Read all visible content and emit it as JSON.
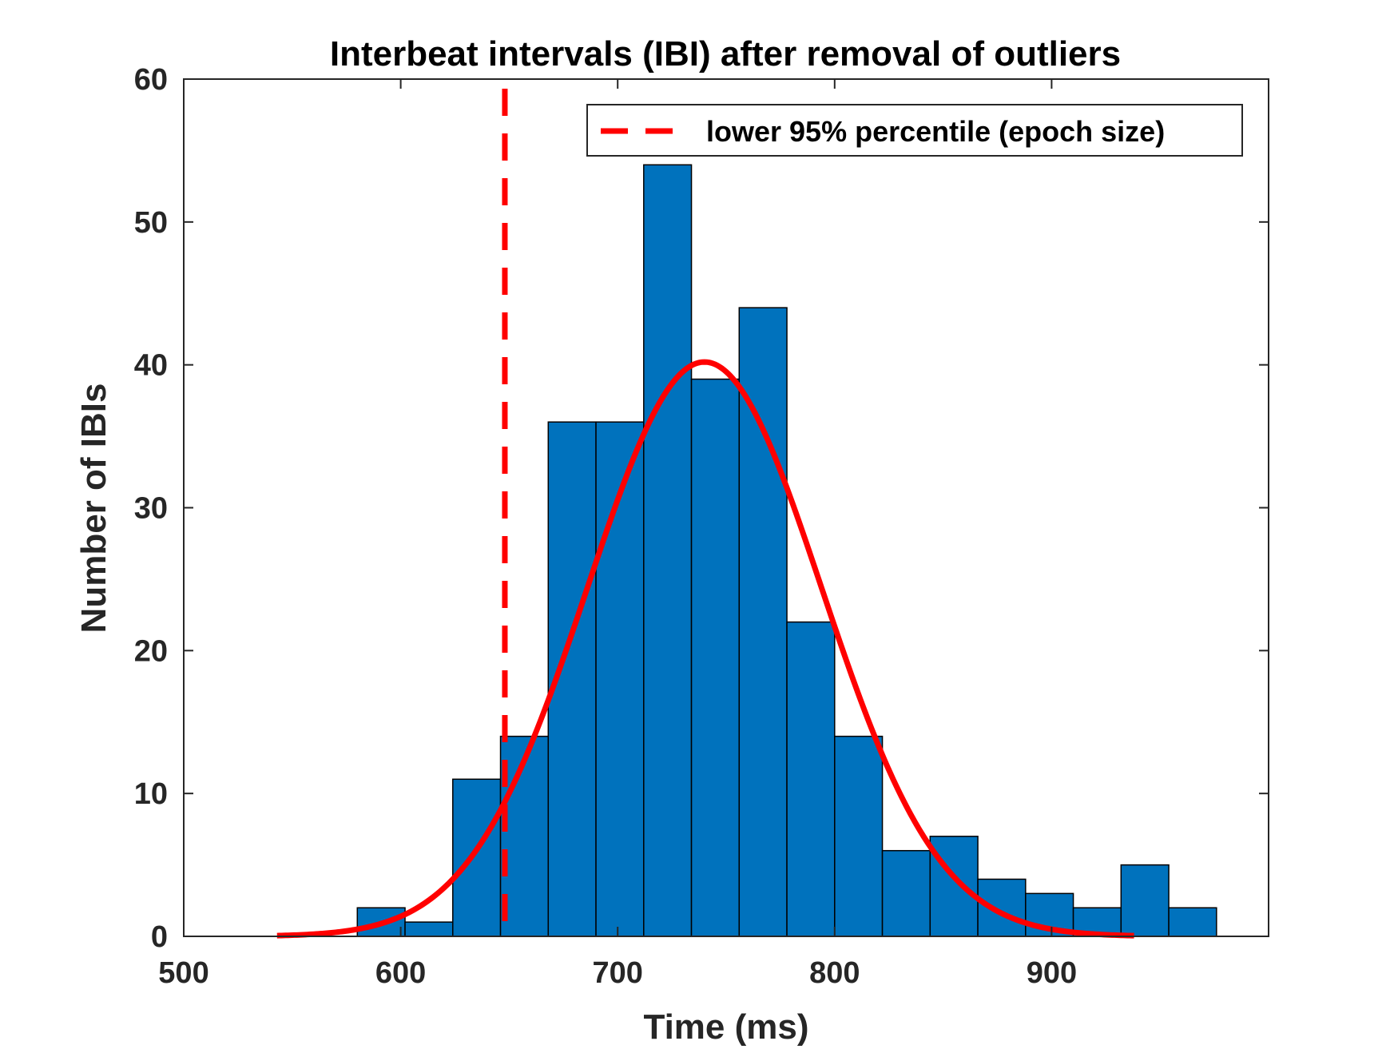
{
  "chart_data": {
    "type": "bar",
    "title": "Interbeat intervals (IBI) after removal of outliers",
    "xlabel": "Time (ms)",
    "ylabel": "Number of IBIs",
    "xlim": [
      500,
      1000
    ],
    "ylim": [
      0,
      60
    ],
    "xticks": [
      500,
      600,
      700,
      800,
      900
    ],
    "yticks": [
      0,
      10,
      20,
      30,
      40,
      50,
      60
    ],
    "bar_color": "#0072BD",
    "line_color": "#FF0000",
    "bins": [
      {
        "start": 580,
        "end": 602,
        "count": 2
      },
      {
        "start": 602,
        "end": 624,
        "count": 1
      },
      {
        "start": 624,
        "end": 646,
        "count": 11
      },
      {
        "start": 646,
        "end": 668,
        "count": 14
      },
      {
        "start": 668,
        "end": 690,
        "count": 36
      },
      {
        "start": 690,
        "end": 712,
        "count": 36
      },
      {
        "start": 712,
        "end": 734,
        "count": 54
      },
      {
        "start": 734,
        "end": 756,
        "count": 39
      },
      {
        "start": 756,
        "end": 778,
        "count": 44
      },
      {
        "start": 778,
        "end": 800,
        "count": 22
      },
      {
        "start": 800,
        "end": 822,
        "count": 14
      },
      {
        "start": 822,
        "end": 844,
        "count": 6
      },
      {
        "start": 844,
        "end": 866,
        "count": 7
      },
      {
        "start": 866,
        "end": 888,
        "count": 4
      },
      {
        "start": 888,
        "end": 910,
        "count": 3
      },
      {
        "start": 910,
        "end": 932,
        "count": 2
      },
      {
        "start": 932,
        "end": 954,
        "count": 5
      },
      {
        "start": 954,
        "end": 976,
        "count": 2
      }
    ],
    "fit_curve": {
      "type": "normal",
      "mean": 740,
      "peak": 40.2,
      "sd": 54,
      "x_range": [
        543,
        938
      ]
    },
    "percentile_line": {
      "x": 648,
      "label": "lower 95% percentile (epoch size)",
      "style": "dashed"
    },
    "legend": {
      "position": "top-right",
      "entries": [
        "lower 95% percentile (epoch size)"
      ]
    },
    "grid": false
  }
}
